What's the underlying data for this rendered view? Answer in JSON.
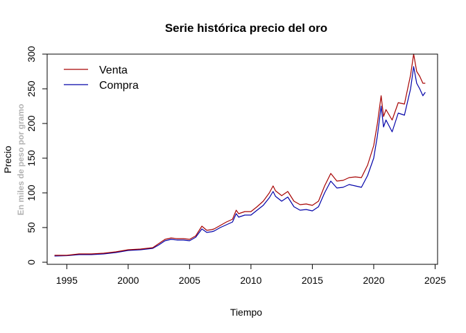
{
  "chart_data": {
    "type": "line",
    "title": "Serie histórica precio del oro",
    "xlabel": "Tiempo",
    "ylabel": "Precio",
    "ylabel_sub": "En miles de peso por gramo",
    "xlim": [
      1993.4,
      2025.2
    ],
    "ylim": [
      -3,
      300
    ],
    "x_ticks": [
      1995,
      2000,
      2005,
      2010,
      2015,
      2020,
      2025
    ],
    "y_ticks": [
      0,
      50,
      100,
      150,
      200,
      250,
      300
    ],
    "grid": false,
    "legend_position": "top-left",
    "x": [
      1994.0,
      1995.0,
      1996.0,
      1997.0,
      1998.0,
      1999.0,
      2000.0,
      2001.0,
      2002.0,
      2002.5,
      2003.0,
      2003.5,
      2004.0,
      2004.5,
      2005.0,
      2005.5,
      2006.0,
      2006.4,
      2006.8,
      2007.0,
      2007.5,
      2008.0,
      2008.5,
      2008.8,
      2009.0,
      2009.5,
      2010.0,
      2010.5,
      2011.0,
      2011.5,
      2011.8,
      2012.0,
      2012.5,
      2013.0,
      2013.5,
      2014.0,
      2014.5,
      2015.0,
      2015.5,
      2016.0,
      2016.5,
      2017.0,
      2017.5,
      2018.0,
      2018.5,
      2019.0,
      2019.5,
      2020.0,
      2020.3,
      2020.6,
      2020.8,
      2021.0,
      2021.5,
      2022.0,
      2022.5,
      2023.0,
      2023.25,
      2023.5,
      2023.75,
      2024.0,
      2024.2
    ],
    "series": [
      {
        "name": "Venta",
        "color": "#a60000",
        "values": [
          10,
          10,
          12,
          12,
          13,
          15,
          18,
          19,
          21,
          27,
          33,
          35,
          34,
          34,
          33,
          38,
          52,
          46,
          47,
          48,
          53,
          58,
          62,
          75,
          70,
          73,
          73,
          80,
          88,
          100,
          110,
          103,
          96,
          102,
          88,
          83,
          84,
          82,
          88,
          110,
          128,
          117,
          118,
          122,
          123,
          122,
          140,
          168,
          200,
          240,
          210,
          220,
          205,
          230,
          228,
          270,
          300,
          275,
          268,
          258,
          258
        ]
      },
      {
        "name": "Compra",
        "color": "#0000a8",
        "values": [
          9,
          9.5,
          11,
          11,
          12,
          14,
          17,
          18,
          20,
          25,
          31,
          33,
          32,
          32,
          31,
          36,
          48,
          43,
          44,
          45,
          50,
          54,
          58,
          70,
          65,
          68,
          68,
          75,
          82,
          93,
          102,
          95,
          88,
          94,
          80,
          75,
          76,
          74,
          80,
          100,
          117,
          107,
          108,
          112,
          110,
          108,
          125,
          150,
          182,
          225,
          195,
          205,
          188,
          215,
          212,
          250,
          282,
          258,
          250,
          240,
          245
        ]
      }
    ]
  }
}
